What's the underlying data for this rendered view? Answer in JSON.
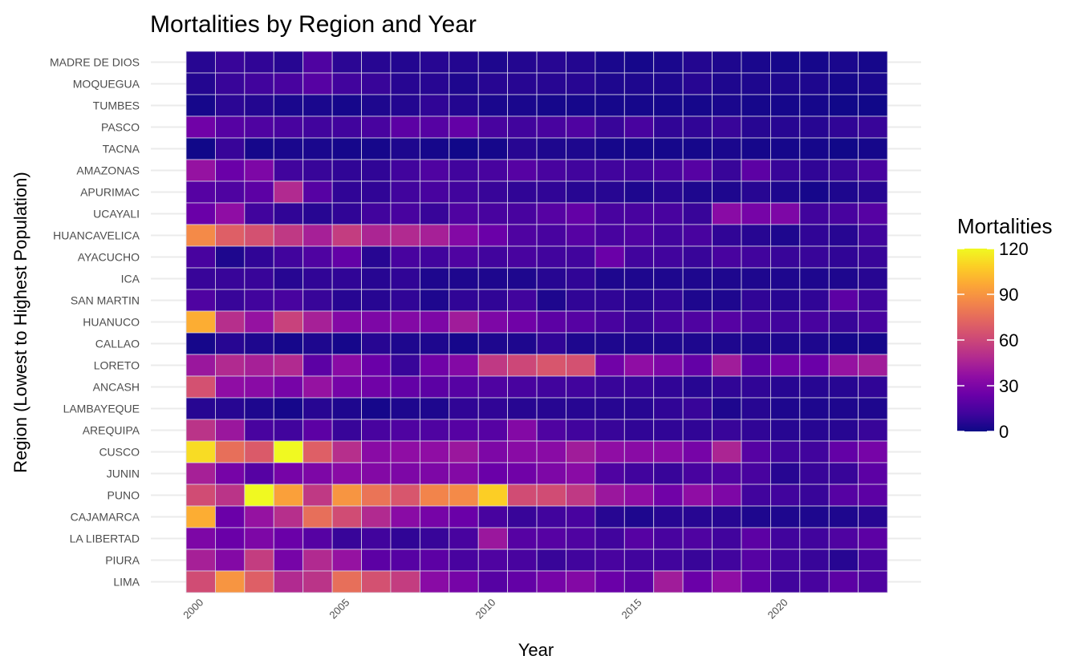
{
  "chart_data": {
    "type": "heatmap",
    "title": "Mortalities by Region and Year",
    "xlabel": "Year",
    "ylabel": "Region (Lowest to Highest Population)",
    "x_ticks": [
      2000,
      2005,
      2010,
      2015,
      2020
    ],
    "years": [
      2000,
      2001,
      2002,
      2003,
      2004,
      2005,
      2006,
      2007,
      2008,
      2009,
      2010,
      2011,
      2012,
      2013,
      2014,
      2015,
      2016,
      2017,
      2018,
      2019,
      2020,
      2021,
      2022,
      2023
    ],
    "regions": [
      "MADRE DE DIOS",
      "MOQUEGUA",
      "TUMBES",
      "PASCO",
      "TACNA",
      "AMAZONAS",
      "APURIMAC",
      "UCAYALI",
      "HUANCAVELICA",
      "AYACUCHO",
      "ICA",
      "SAN MARTIN",
      "HUANUCO",
      "CALLAO",
      "LORETO",
      "ANCASH",
      "LAMBAYEQUE",
      "AREQUIPA",
      "CUSCO",
      "JUNIN",
      "PUNO",
      "CAJAMARCA",
      "LA LIBERTAD",
      "PIURA",
      "LIMA"
    ],
    "values": [
      [
        6,
        10,
        8,
        6,
        16,
        7,
        6,
        5,
        6,
        5,
        4,
        5,
        6,
        5,
        3,
        2,
        3,
        5,
        4,
        3,
        2,
        2,
        3,
        2
      ],
      [
        5,
        10,
        12,
        14,
        18,
        12,
        10,
        6,
        6,
        4,
        6,
        6,
        6,
        6,
        4,
        4,
        4,
        6,
        4,
        4,
        4,
        4,
        2,
        3
      ],
      [
        2,
        7,
        5,
        3,
        3,
        2,
        4,
        5,
        8,
        5,
        3,
        3,
        2,
        2,
        2,
        2,
        2,
        2,
        3,
        2,
        2,
        2,
        1,
        1
      ],
      [
        26,
        18,
        16,
        14,
        12,
        12,
        14,
        20,
        18,
        22,
        14,
        12,
        14,
        16,
        10,
        14,
        8,
        8,
        10,
        6,
        6,
        6,
        8,
        10
      ],
      [
        1,
        10,
        2,
        3,
        3,
        2,
        2,
        4,
        2,
        1,
        2,
        6,
        4,
        4,
        2,
        2,
        2,
        2,
        3,
        2,
        2,
        2,
        1,
        2
      ],
      [
        38,
        24,
        30,
        12,
        10,
        8,
        8,
        12,
        16,
        12,
        14,
        18,
        14,
        12,
        12,
        12,
        14,
        18,
        10,
        20,
        10,
        8,
        10,
        14
      ],
      [
        18,
        16,
        20,
        48,
        18,
        8,
        8,
        12,
        14,
        12,
        10,
        8,
        8,
        6,
        6,
        4,
        6,
        4,
        4,
        6,
        4,
        2,
        4,
        6
      ],
      [
        24,
        36,
        12,
        8,
        6,
        8,
        12,
        14,
        10,
        16,
        14,
        14,
        18,
        22,
        14,
        14,
        14,
        10,
        34,
        28,
        30,
        12,
        14,
        18
      ],
      [
        86,
        70,
        64,
        54,
        44,
        56,
        46,
        48,
        44,
        32,
        24,
        16,
        14,
        18,
        14,
        16,
        12,
        14,
        8,
        6,
        4,
        8,
        6,
        12
      ],
      [
        14,
        4,
        8,
        12,
        16,
        22,
        6,
        14,
        12,
        16,
        12,
        14,
        12,
        12,
        24,
        12,
        12,
        10,
        14,
        12,
        10,
        10,
        8,
        10
      ],
      [
        10,
        10,
        10,
        6,
        8,
        8,
        6,
        8,
        4,
        4,
        4,
        4,
        6,
        8,
        4,
        4,
        4,
        4,
        4,
        4,
        4,
        4,
        4,
        6
      ],
      [
        16,
        10,
        12,
        14,
        10,
        6,
        6,
        8,
        4,
        8,
        8,
        12,
        4,
        8,
        8,
        6,
        8,
        4,
        4,
        8,
        6,
        8,
        20,
        12
      ],
      [
        98,
        50,
        38,
        58,
        44,
        32,
        30,
        32,
        30,
        42,
        30,
        26,
        20,
        18,
        14,
        10,
        14,
        16,
        18,
        14,
        12,
        14,
        10,
        14
      ],
      [
        2,
        6,
        4,
        2,
        4,
        2,
        6,
        4,
        4,
        2,
        4,
        4,
        8,
        4,
        4,
        4,
        4,
        4,
        4,
        4,
        4,
        4,
        2,
        2
      ],
      [
        40,
        48,
        44,
        48,
        20,
        34,
        24,
        10,
        26,
        32,
        54,
        60,
        66,
        64,
        26,
        36,
        30,
        22,
        42,
        20,
        26,
        24,
        38,
        42
      ],
      [
        64,
        36,
        34,
        28,
        38,
        28,
        26,
        22,
        20,
        18,
        16,
        14,
        12,
        12,
        10,
        10,
        8,
        6,
        8,
        8,
        6,
        6,
        6,
        8
      ],
      [
        6,
        6,
        4,
        2,
        6,
        4,
        2,
        4,
        4,
        8,
        8,
        6,
        6,
        6,
        6,
        6,
        8,
        10,
        4,
        6,
        4,
        4,
        4,
        4
      ],
      [
        52,
        40,
        14,
        12,
        20,
        10,
        14,
        16,
        16,
        18,
        18,
        32,
        16,
        12,
        10,
        8,
        8,
        8,
        10,
        8,
        6,
        6,
        6,
        10
      ],
      [
        112,
        76,
        68,
        120,
        70,
        50,
        34,
        36,
        36,
        40,
        30,
        34,
        34,
        42,
        36,
        34,
        34,
        28,
        46,
        18,
        12,
        12,
        22,
        28
      ],
      [
        44,
        28,
        18,
        28,
        30,
        34,
        32,
        30,
        30,
        32,
        24,
        26,
        30,
        34,
        16,
        12,
        10,
        14,
        16,
        14,
        6,
        10,
        10,
        20
      ],
      [
        62,
        52,
        120,
        94,
        54,
        90,
        78,
        66,
        84,
        86,
        108,
        62,
        62,
        54,
        40,
        36,
        26,
        36,
        30,
        12,
        12,
        10,
        18,
        20
      ],
      [
        98,
        24,
        38,
        50,
        76,
        62,
        48,
        34,
        28,
        24,
        14,
        10,
        12,
        14,
        6,
        4,
        6,
        6,
        6,
        4,
        4,
        4,
        4,
        6
      ],
      [
        30,
        24,
        30,
        24,
        18,
        10,
        12,
        8,
        10,
        14,
        40,
        18,
        18,
        16,
        12,
        18,
        14,
        16,
        12,
        20,
        12,
        12,
        16,
        20
      ],
      [
        44,
        32,
        56,
        28,
        48,
        38,
        20,
        18,
        20,
        14,
        16,
        14,
        10,
        12,
        14,
        12,
        12,
        10,
        12,
        18,
        12,
        10,
        6,
        14
      ],
      [
        62,
        90,
        70,
        48,
        52,
        76,
        64,
        56,
        34,
        28,
        18,
        22,
        28,
        32,
        24,
        20,
        42,
        24,
        36,
        22,
        12,
        14,
        20,
        16
      ]
    ],
    "legend": {
      "title": "Mortalities",
      "ticks": [
        0,
        30,
        60,
        90,
        120
      ],
      "min": 0,
      "max": 120,
      "colormap": "plasma"
    }
  }
}
